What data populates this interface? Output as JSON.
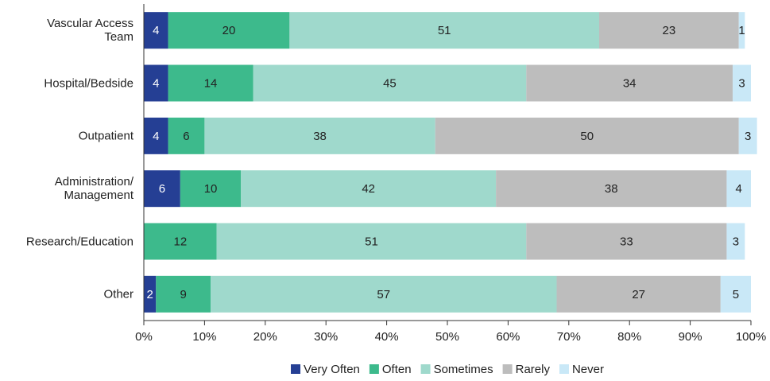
{
  "chart_data": {
    "type": "stacked-barh",
    "categories": [
      "Vascular Access\nTeam",
      "Hospital/Bedside",
      "Outpatient",
      "Administration/\nManagement",
      "Research/Education",
      "Other"
    ],
    "series": [
      {
        "name": "Very Often",
        "color": "#253f94",
        "values": [
          4,
          4,
          4,
          6,
          null,
          2
        ]
      },
      {
        "name": "Often",
        "color": "#3dba8c",
        "values": [
          20,
          14,
          6,
          10,
          12,
          9
        ]
      },
      {
        "name": "Sometimes",
        "color": "#9fd9cc",
        "values": [
          51,
          45,
          38,
          42,
          51,
          57
        ]
      },
      {
        "name": "Rarely",
        "color": "#bdbdbd",
        "values": [
          23,
          34,
          50,
          38,
          33,
          27
        ]
      },
      {
        "name": "Never",
        "color": "#c9e8f7",
        "values": [
          1,
          3,
          3,
          4,
          3,
          5
        ]
      }
    ],
    "xlim": [
      0,
      100
    ],
    "xticks": [
      {
        "value": 0,
        "label": "0%"
      },
      {
        "value": 10,
        "label": "10%"
      },
      {
        "value": 20,
        "label": "20%"
      },
      {
        "value": 30,
        "label": "30%"
      },
      {
        "value": 40,
        "label": "40%"
      },
      {
        "value": 50,
        "label": "50%"
      },
      {
        "value": 60,
        "label": "60%"
      },
      {
        "value": 70,
        "label": "70%"
      },
      {
        "value": 80,
        "label": "80%"
      },
      {
        "value": 90,
        "label": "90%"
      },
      {
        "value": 100,
        "label": "100%"
      }
    ],
    "legend": "bottom"
  }
}
